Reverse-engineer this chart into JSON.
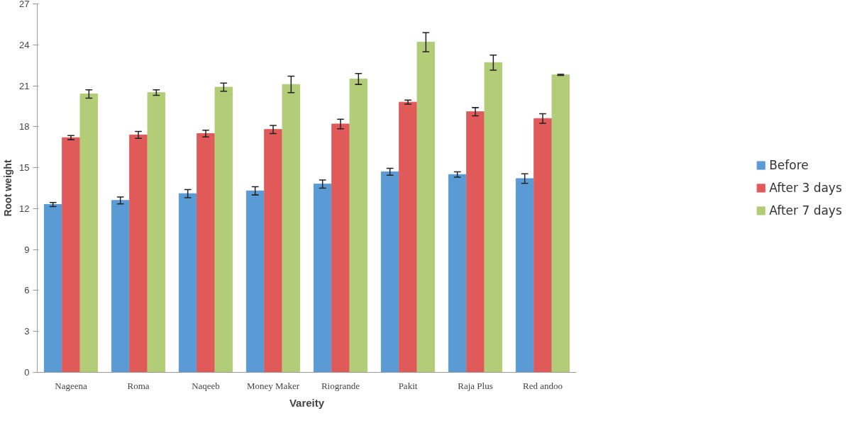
{
  "chart_data": {
    "type": "bar",
    "xlabel": "Vareity",
    "ylabel": "Root weight",
    "categories": [
      "Nageena",
      "Roma",
      "Naqeeb",
      "Money Maker",
      "Riogrande",
      "Pakit",
      "Raja Plus",
      "Red andoo"
    ],
    "series": [
      {
        "name": "Before",
        "color": "#5b9bd5",
        "values": [
          12.3,
          12.6,
          13.1,
          13.3,
          13.8,
          14.7,
          14.5,
          14.2
        ],
        "errors": [
          0.15,
          0.25,
          0.3,
          0.3,
          0.3,
          0.25,
          0.2,
          0.35
        ]
      },
      {
        "name": "After 3 days",
        "color": "#e05a5a",
        "values": [
          17.2,
          17.4,
          17.5,
          17.8,
          18.2,
          19.8,
          19.1,
          18.6
        ],
        "errors": [
          0.15,
          0.25,
          0.25,
          0.3,
          0.35,
          0.15,
          0.3,
          0.35
        ]
      },
      {
        "name": "After 7 days",
        "color": "#b3cc78",
        "values": [
          20.4,
          20.5,
          20.9,
          21.1,
          21.5,
          24.2,
          22.7,
          21.8
        ],
        "errors": [
          0.3,
          0.2,
          0.3,
          0.6,
          0.4,
          0.7,
          0.55,
          0.05
        ]
      }
    ],
    "ylim": [
      0,
      27
    ],
    "yticks": [
      0,
      3,
      6,
      9,
      12,
      15,
      18,
      21,
      24,
      27
    ],
    "grid": false,
    "legend": "right"
  }
}
